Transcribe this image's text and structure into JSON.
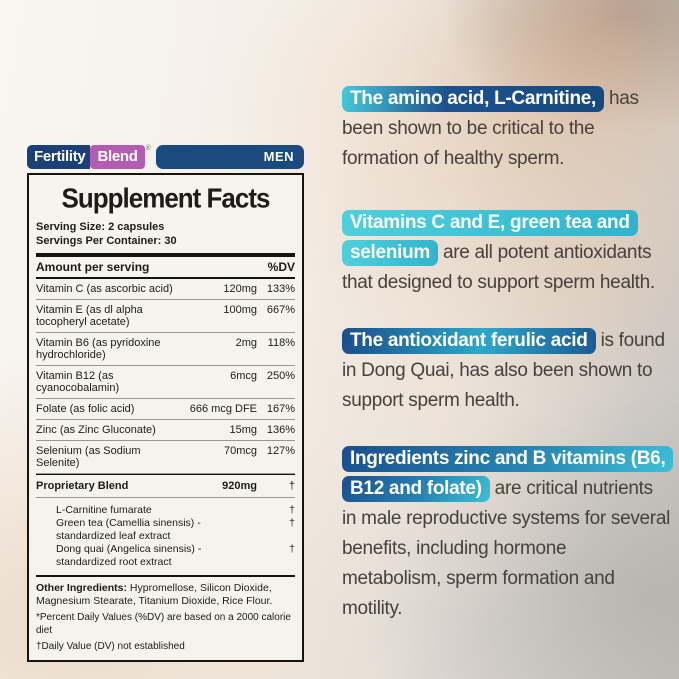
{
  "label": {
    "brand": {
      "part1": "Fertility",
      "part2": "Blend",
      "registered": "®",
      "variant": "MEN"
    },
    "title": "Supplement Facts",
    "serving_size": "Serving Size: 2 capsules",
    "servings_per_container": "Servings Per Container: 30",
    "columns": {
      "amount": "Amount per serving",
      "dv": "%DV"
    },
    "rows": [
      {
        "name": "Vitamin C (as ascorbic acid)",
        "amount": "120mg",
        "dv": "133%"
      },
      {
        "name": "Vitamin E (as dl alpha tocopheryl acetate)",
        "amount": "100mg",
        "dv": "667%"
      },
      {
        "name": "Vitamin B6 (as pyridoxine hydrochloride)",
        "amount": "2mg",
        "dv": "118%"
      },
      {
        "name": "Vitamin B12 (as cyanocobalamin)",
        "amount": "6mcg",
        "dv": "250%"
      },
      {
        "name": "Folate (as folic acid)",
        "amount": "666 mcg DFE",
        "dv": "167%"
      },
      {
        "name": "Zinc (as Zinc Gluconate)",
        "amount": "15mg",
        "dv": "136%"
      },
      {
        "name": "Selenium (as Sodium Selenite)",
        "amount": "70mcg",
        "dv": "127%"
      }
    ],
    "blend": {
      "name": "Proprietary Blend",
      "amount": "920mg",
      "dv": "†"
    },
    "blend_items": [
      {
        "name": "L-Carnitine fumarate",
        "dv": "†"
      },
      {
        "name": "Green tea (Camellia sinensis) - standardized leaf extract",
        "dv": "†"
      },
      {
        "name": "Dong quai (Angelica sinensis) - standardized root extract",
        "dv": "†"
      }
    ],
    "other_ingredients_label": "Other Ingredients:",
    "other_ingredients": " Hypromellose, Silicon Dioxide, Magnesium Stearate, Titanium Dioxide, Rice Flour.",
    "footnote1": "*Percent Daily Values (%DV) are based on a 2000 calorie diet",
    "footnote2": "†Daily Value (DV) not established"
  },
  "callouts": [
    {
      "highlight": "The amino acid, L-Carnitine,",
      "text": " has been shown to be critical to the formation of healthy sperm."
    },
    {
      "highlight": "Vitamins C and E, green tea and selenium",
      "text": " are all potent antioxidants that designed to support sperm health."
    },
    {
      "highlight": "The antioxidant ferulic acid",
      "text": " is found in Dong Quai, has also been shown to support sperm health."
    },
    {
      "highlight": "Ingredients zinc and B vitamins (B6, B12 and folate)",
      "text": " are critical nutrients in male reproductive systems for several benefits, including hormone metabolism, sperm formation and motility."
    }
  ],
  "colors": {
    "brand_blue": "#1b4078",
    "brand_purple": "#b25cb2",
    "highlight_cyan": "#3cc0d6",
    "highlight_blue": "#1b4e8c",
    "callout_text": "#46413d"
  }
}
